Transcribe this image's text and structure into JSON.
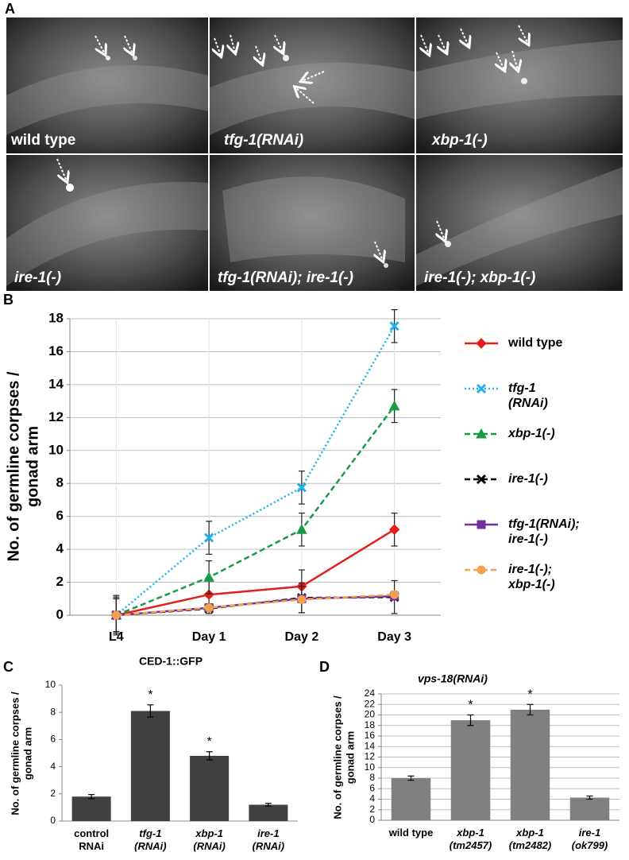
{
  "panel_a": {
    "label": "A",
    "images": [
      {
        "label": "wild type"
      },
      {
        "label": "tfg-1(RNAi)"
      },
      {
        "label": "xbp-1(-)"
      },
      {
        "label": "ire-1(-)"
      },
      {
        "label": "tfg-1(RNAi); ire-1(-)"
      },
      {
        "label": "ire-1(-); xbp-1(-)"
      }
    ]
  },
  "chart_data": [
    {
      "type": "line",
      "panel_label": "B",
      "ylabel": [
        "No. of germline corpses /",
        "gonad arm"
      ],
      "categories": [
        "L4",
        "Day 1",
        "Day 2",
        "Day 3"
      ],
      "ylim": [
        0,
        18
      ],
      "yticks": [
        0,
        2,
        4,
        6,
        8,
        10,
        12,
        14,
        16,
        18
      ],
      "grid": true,
      "series": [
        {
          "name": "wild type",
          "color": "#e3201b",
          "marker": "diamond",
          "dash": "solid",
          "values": [
            0,
            1.25,
            1.75,
            5.2
          ],
          "errors": [
            1.1,
            0.9,
            1.0,
            1.0
          ]
        },
        {
          "name": "tfg-1\n(RNAi)",
          "color": "#1fb2e8",
          "marker": "x",
          "dash": "dotted",
          "values": [
            0,
            4.7,
            7.75,
            17.55
          ],
          "errors": [
            1.0,
            1.0,
            1.0,
            1.0
          ]
        },
        {
          "name": "xbp-1(-)",
          "color": "#1a9a47",
          "marker": "triangle",
          "dash": "dashed",
          "values": [
            0,
            2.3,
            5.2,
            12.7
          ],
          "errors": [
            1.0,
            1.0,
            1.0,
            1.0
          ]
        },
        {
          "name": "ire-1(-)",
          "color": "#000000",
          "marker": "x",
          "dash": "dashed",
          "values": [
            0,
            0.4,
            1.05,
            1.1
          ],
          "errors": [
            1.2,
            0.3,
            0.9,
            1.0
          ]
        },
        {
          "name": "tfg-1(RNAi);\nire-1(-)",
          "color": "#7030a0",
          "marker": "square",
          "dash": "solid",
          "values": [
            0,
            0.45,
            1.0,
            1.15
          ],
          "errors": [
            0.2,
            0.2,
            0.2,
            0.2
          ]
        },
        {
          "name": "ire-1(-);\nxbp-1(-)",
          "color": "#f5a04a",
          "marker": "circle",
          "dash": "dashed",
          "values": [
            0,
            0.45,
            0.95,
            1.25
          ],
          "errors": [
            0.2,
            0.2,
            0.8,
            0.2
          ]
        }
      ]
    },
    {
      "type": "bar",
      "panel_label": "C",
      "title": "CED-1::GFP",
      "ylabel": [
        "No. of germline corpses /",
        "gonad arm"
      ],
      "categories": [
        "control\nRNAi",
        "tfg-1\n(RNAi)",
        "xbp-1\n(RNAi)",
        "ire-1\n(RNAi)"
      ],
      "values": [
        1.8,
        8.1,
        4.8,
        1.2
      ],
      "errors": [
        0.15,
        0.45,
        0.3,
        0.1
      ],
      "significance": [
        null,
        "*",
        "*",
        null
      ],
      "color": "#404040",
      "ylim": [
        0,
        10
      ],
      "yticks": [
        0,
        2,
        4,
        6,
        8,
        10
      ],
      "grid": false
    },
    {
      "type": "bar",
      "panel_label": "D",
      "title": "vps-18(RNAi)",
      "ylabel": [
        "No. of germline corpses /",
        "gonad arm"
      ],
      "categories": [
        "wild type",
        "xbp-1\n(tm2457)",
        "xbp-1\n(tm2482)",
        "ire-1\n(ok799)"
      ],
      "values": [
        8,
        19,
        21,
        4.3
      ],
      "errors": [
        0.4,
        1.0,
        1.0,
        0.3
      ],
      "significance": [
        null,
        "*",
        "*",
        null
      ],
      "color": "#808080",
      "ylim": [
        0,
        24
      ],
      "yticks": [
        0,
        2,
        4,
        6,
        8,
        10,
        12,
        14,
        16,
        18,
        20,
        22,
        24
      ],
      "grid": true
    }
  ]
}
